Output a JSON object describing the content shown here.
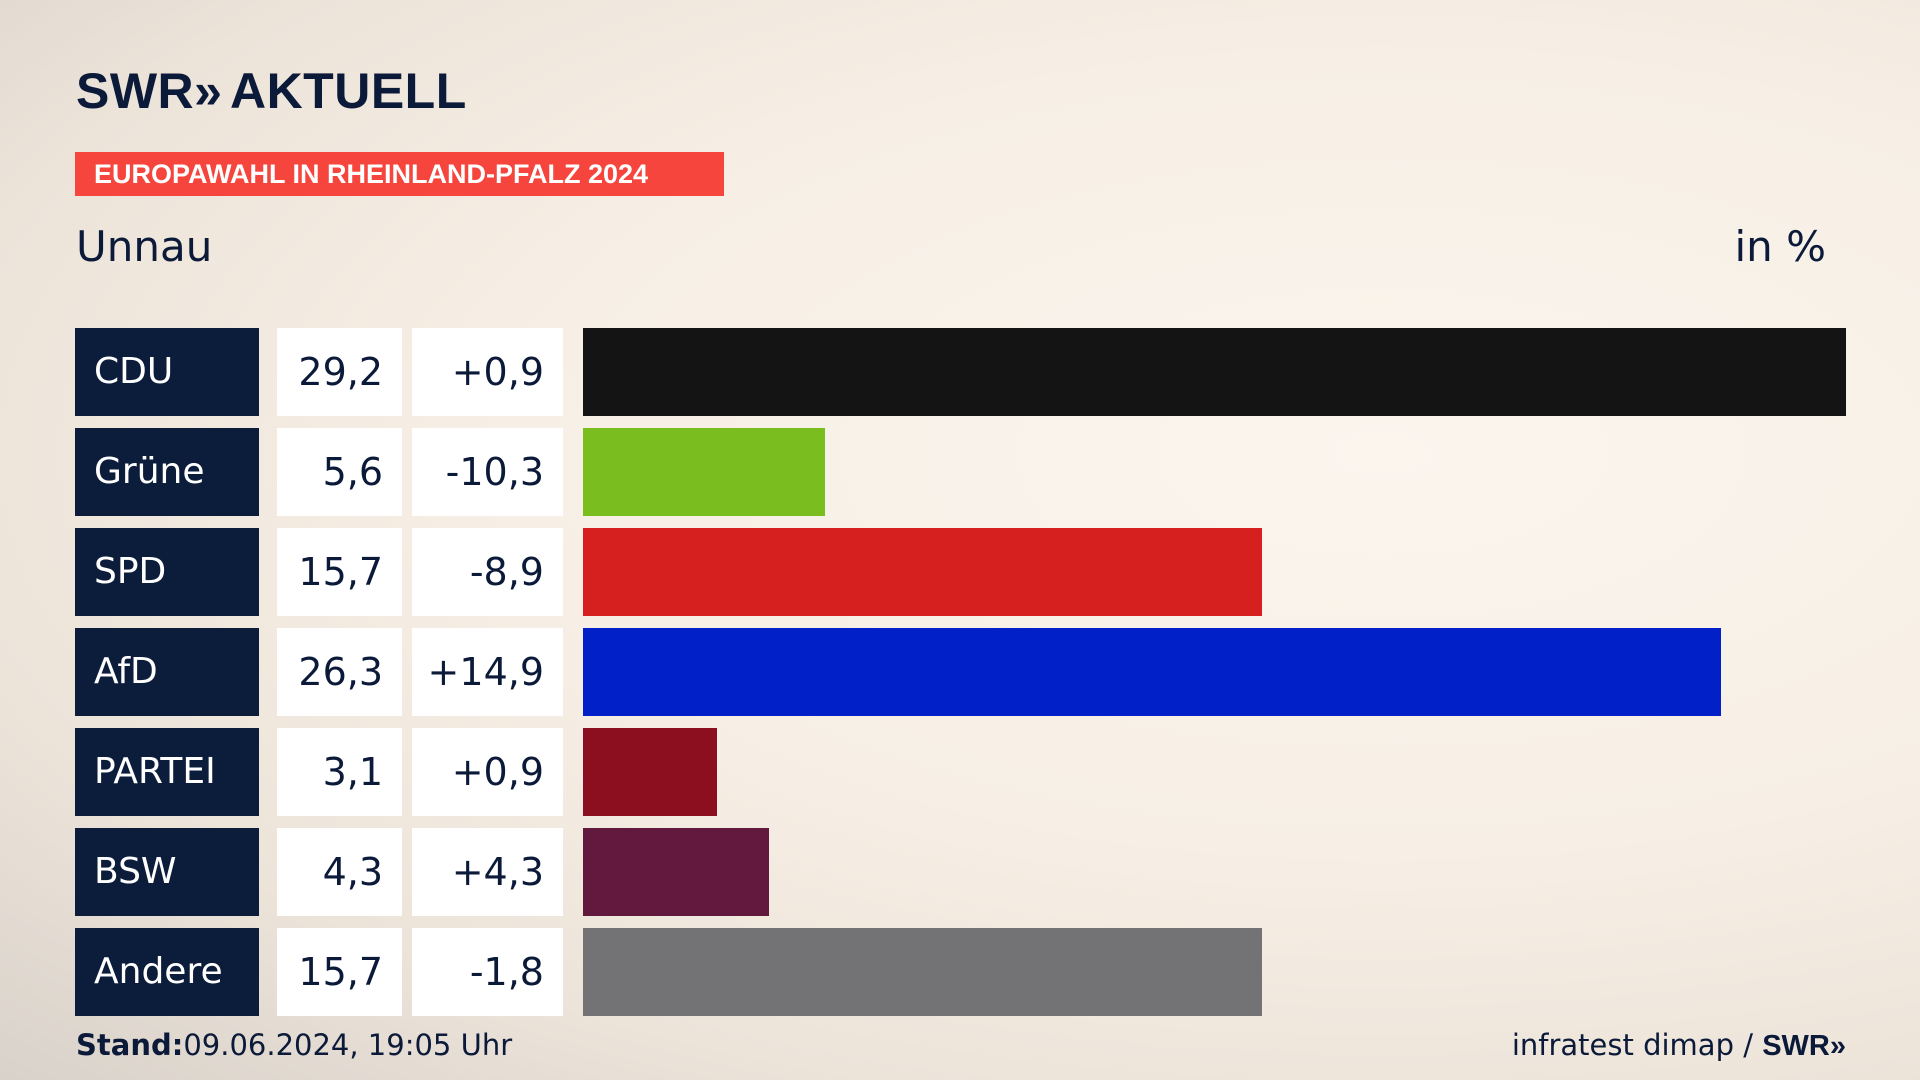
{
  "brand": {
    "name": "SWR",
    "chevrons": "»",
    "product": "AKTUELL"
  },
  "banner": "EUROPAWAHL IN RHEINLAND-PFALZ 2024",
  "region": "Unnau",
  "unit": "in %",
  "colors": {
    "banner": "#f5453d",
    "party_box": "#0c1d3c"
  },
  "chart_data": {
    "type": "bar",
    "orientation": "horizontal",
    "categories": [
      "CDU",
      "Grüne",
      "SPD",
      "AfD",
      "PARTEI",
      "BSW",
      "Andere"
    ],
    "values": [
      29.2,
      5.6,
      15.7,
      26.3,
      3.1,
      4.3,
      15.7
    ],
    "value_labels": [
      "29,2",
      "5,6",
      "15,7",
      "26,3",
      "3,1",
      "4,3",
      "15,7"
    ],
    "diff_labels": [
      "+0,9",
      "-10,3",
      "-8,9",
      "+14,9",
      "+0,9",
      "+4,3",
      "-1,8"
    ],
    "diffs": [
      0.9,
      -10.3,
      -8.9,
      14.9,
      0.9,
      4.3,
      -1.8
    ],
    "colors": [
      "#141414",
      "#79bd1e",
      "#d61f1f",
      "#0220c8",
      "#8c0f20",
      "#63183e",
      "#737375"
    ],
    "xlim": [
      0,
      29.2
    ]
  },
  "footer": {
    "stand_label": "Stand:",
    "stand_value": "09.06.2024, 19:05 Uhr",
    "source": "infratest dimap /",
    "source_brand": "SWR",
    "source_chevrons": "»"
  }
}
